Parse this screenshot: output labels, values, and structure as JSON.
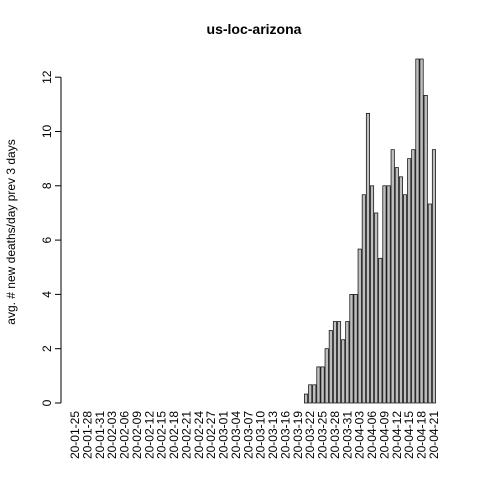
{
  "chart_data": {
    "type": "bar",
    "title": "us-loc-arizona",
    "ylabel": "avg. # new deaths/day prev  3  days",
    "categories": [
      "20-01-25",
      null,
      null,
      "20-01-28",
      null,
      null,
      "20-01-31",
      null,
      null,
      "20-02-03",
      null,
      null,
      "20-02-06",
      null,
      null,
      "20-02-09",
      null,
      null,
      "20-02-12",
      null,
      null,
      "20-02-15",
      null,
      null,
      "20-02-18",
      null,
      null,
      "20-02-21",
      null,
      null,
      "20-02-24",
      null,
      null,
      "20-02-27",
      null,
      null,
      "20-03-01",
      null,
      null,
      "20-03-04",
      null,
      null,
      "20-03-07",
      null,
      null,
      "20-03-10",
      null,
      null,
      "20-03-13",
      null,
      null,
      "20-03-16",
      null,
      null,
      "20-03-19",
      null,
      null,
      "20-03-22",
      null,
      null,
      "20-03-25",
      null,
      null,
      "20-03-28",
      null,
      null,
      "20-03-31",
      null,
      null,
      "20-04-03",
      null,
      null,
      "20-04-06",
      null,
      null,
      "20-04-09",
      null,
      null,
      "20-04-12",
      null,
      null,
      "20-04-15",
      null,
      null,
      "20-04-18",
      null,
      null,
      "20-04-21"
    ],
    "values": [
      0,
      0,
      0,
      0,
      0,
      0,
      0,
      0,
      0,
      0,
      0,
      0,
      0,
      0,
      0,
      0,
      0,
      0,
      0,
      0,
      0,
      0,
      0,
      0,
      0,
      0,
      0,
      0,
      0,
      0,
      0,
      0,
      0,
      0,
      0,
      0,
      0,
      0,
      0,
      0,
      0,
      0,
      0,
      0,
      0,
      0,
      0,
      0,
      0,
      0,
      0,
      0,
      0,
      0,
      0,
      0,
      0.33,
      0.67,
      0.67,
      1.33,
      1.33,
      2.0,
      2.67,
      3.0,
      3.0,
      2.33,
      3.0,
      4.0,
      4.0,
      5.67,
      7.67,
      10.67,
      8.0,
      7.0,
      5.33,
      8.0,
      8.0,
      9.33,
      8.67,
      8.33,
      7.67,
      9.0,
      9.33,
      12.67,
      12.67,
      11.33,
      7.33,
      9.33
    ],
    "color": "#bebebe",
    "ylim": [
      0,
      12.67
    ],
    "yticks": [
      0,
      2,
      4,
      6,
      8,
      10,
      12
    ]
  }
}
